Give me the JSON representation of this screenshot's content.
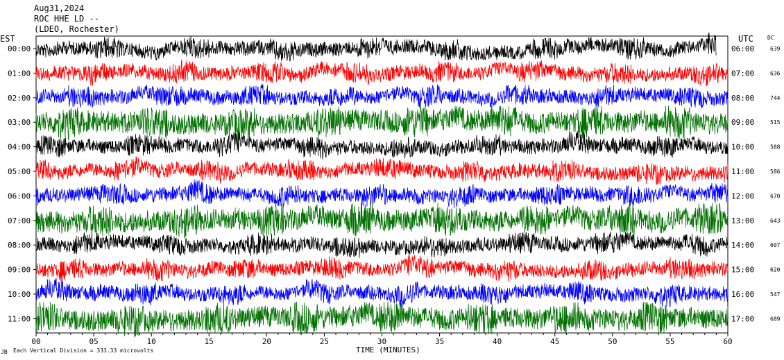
{
  "header": {
    "date": "Aug31,2024",
    "station": "ROC HHE LD --",
    "network": "(LDEO, Rochester)"
  },
  "labels": {
    "left_zone": "EST",
    "right_zone": "UTC",
    "dc_header": "DC",
    "x_axis": "TIME (MINUTES)",
    "footer": "Each Vertical Division =  333.33 microvolts",
    "footer_mark": "JB"
  },
  "chart_data": {
    "type": "line",
    "title": "",
    "xlabel": "TIME (MINUTES)",
    "ylabel": "",
    "xlim": [
      0,
      60
    ],
    "x_ticks": [
      "00",
      "05",
      "10",
      "15",
      "20",
      "25",
      "30",
      "35",
      "40",
      "45",
      "50",
      "55",
      "60"
    ],
    "grid": false,
    "colors": {
      "cycle": [
        "#000000",
        "#ff0000",
        "#0000ff",
        "#007000"
      ]
    },
    "traces": [
      {
        "est": "00:00",
        "utc": "06:00",
        "dc": "639",
        "color": "#000000",
        "amplitude": "medium",
        "end_minute": 59
      },
      {
        "est": "01:00",
        "utc": "07:00",
        "dc": "636",
        "color": "#ff0000",
        "amplitude": "medium"
      },
      {
        "est": "02:00",
        "utc": "08:00",
        "dc": "744",
        "color": "#0000ff",
        "amplitude": "medium"
      },
      {
        "est": "03:00",
        "utc": "09:00",
        "dc": "515",
        "color": "#007000",
        "amplitude": "high"
      },
      {
        "est": "04:00",
        "utc": "10:00",
        "dc": "588",
        "color": "#000000",
        "amplitude": "medium"
      },
      {
        "est": "05:00",
        "utc": "11:00",
        "dc": "586",
        "color": "#ff0000",
        "amplitude": "medium"
      },
      {
        "est": "06:00",
        "utc": "12:00",
        "dc": "670",
        "color": "#0000ff",
        "amplitude": "medium"
      },
      {
        "est": "07:00",
        "utc": "13:00",
        "dc": "643",
        "color": "#007000",
        "amplitude": "high"
      },
      {
        "est": "08:00",
        "utc": "14:00",
        "dc": "607",
        "color": "#000000",
        "amplitude": "medium"
      },
      {
        "est": "09:00",
        "utc": "15:00",
        "dc": "620",
        "color": "#ff0000",
        "amplitude": "medium"
      },
      {
        "est": "10:00",
        "utc": "16:00",
        "dc": "547",
        "color": "#0000ff",
        "amplitude": "medium"
      },
      {
        "est": "11:00",
        "utc": "17:00",
        "dc": "689",
        "color": "#007000",
        "amplitude": "high"
      }
    ]
  }
}
